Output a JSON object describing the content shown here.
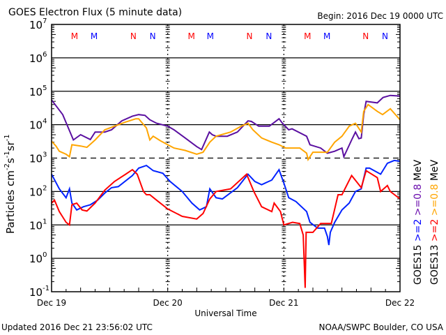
{
  "chart_data": {
    "type": "line",
    "title": "GOES Electron Flux (5 minute data)",
    "begin_label": "Begin: 2016 Dec 19 0000 UTC",
    "xlabel": "Universal Time",
    "ylabel": "Particles cm",
    "ylabel_parts": [
      "Particles cm",
      "-2",
      "s",
      "-1",
      "sr",
      "-1"
    ],
    "yscale": "log",
    "ylim": [
      0.1,
      10000000
    ],
    "xlim_hours": [
      0,
      72
    ],
    "y_ticks": [
      {
        "base": "10",
        "exp": "7",
        "value": 10000000
      },
      {
        "base": "10",
        "exp": "6",
        "value": 1000000
      },
      {
        "base": "10",
        "exp": "5",
        "value": 100000
      },
      {
        "base": "10",
        "exp": "4",
        "value": 10000
      },
      {
        "base": "10",
        "exp": "3",
        "value": 1000
      },
      {
        "base": "10",
        "exp": "2",
        "value": 100
      },
      {
        "base": "10",
        "exp": "1",
        "value": 10
      },
      {
        "base": "10",
        "exp": "0",
        "value": 1
      },
      {
        "base": "10",
        "exp": "-1",
        "value": 0.1
      }
    ],
    "x_ticks": [
      {
        "label": "Dec 19",
        "hour": 0
      },
      {
        "label": "Dec 20",
        "hour": 24
      },
      {
        "label": "Dec 21",
        "hour": 48
      },
      {
        "label": "Dec 22",
        "hour": 72
      }
    ],
    "threshold_dashed": 1000,
    "markers": [
      {
        "label": "M",
        "color": "#ff0000",
        "hour": 4.75
      },
      {
        "label": "M",
        "color": "#0000ff",
        "hour": 8.8
      },
      {
        "label": "N",
        "color": "#ff0000",
        "hour": 16.9
      },
      {
        "label": "N",
        "color": "#0000ff",
        "hour": 20.9
      },
      {
        "label": "M",
        "color": "#ff0000",
        "hour": 28.9
      },
      {
        "label": "M",
        "color": "#0000ff",
        "hour": 32.8
      },
      {
        "label": "N",
        "color": "#ff0000",
        "hour": 40.9
      },
      {
        "label": "N",
        "color": "#0000ff",
        "hour": 44.9
      },
      {
        "label": "M",
        "color": "#ff0000",
        "hour": 52.9
      },
      {
        "label": "M",
        "color": "#0000ff",
        "hour": 56.9
      },
      {
        "label": "N",
        "color": "#ff0000",
        "hour": 64.9
      },
      {
        "label": "N",
        "color": "#0000ff",
        "hour": 68.9
      }
    ],
    "legend": [
      {
        "satellite": "GOES15",
        "entries": [
          {
            "label": ">=2",
            "color": "#0000ff"
          },
          {
            "label": ">=0.8",
            "color": "#6a0dad"
          }
        ],
        "unit": "MeV"
      },
      {
        "satellite": "GOES13",
        "entries": [
          {
            "label": ">=2",
            "color": "#ff0000"
          },
          {
            "label": ">=0.8",
            "color": "#ffa500"
          }
        ],
        "unit": "MeV"
      }
    ],
    "legend_placement": "right",
    "series": [
      {
        "name": "GOES15 >=0.8 MeV",
        "color": "#5a0fa0",
        "points": [
          [
            0,
            55000
          ],
          [
            2.3,
            20000
          ],
          [
            4.5,
            3500
          ],
          [
            6,
            5000
          ],
          [
            8,
            3600
          ],
          [
            9,
            6000
          ],
          [
            11,
            6000
          ],
          [
            12.4,
            7000
          ],
          [
            14.5,
            13000
          ],
          [
            16.7,
            18000
          ],
          [
            18,
            20000
          ],
          [
            19.3,
            19000
          ],
          [
            20.3,
            14000
          ],
          [
            21.7,
            11000
          ],
          [
            24,
            9000
          ],
          [
            25.3,
            7000
          ],
          [
            27.6,
            4000
          ],
          [
            30,
            2200
          ],
          [
            31,
            1800
          ],
          [
            32.6,
            6000
          ],
          [
            33.2,
            5000
          ],
          [
            34,
            4500
          ],
          [
            36.3,
            4500
          ],
          [
            38.4,
            6000
          ],
          [
            40.6,
            13000
          ],
          [
            41.3,
            12500
          ],
          [
            42.8,
            9000
          ],
          [
            45,
            9000
          ],
          [
            47,
            15000
          ],
          [
            47.7,
            11000
          ],
          [
            49,
            7000
          ],
          [
            49.7,
            7500
          ],
          [
            52.7,
            4500
          ],
          [
            53.4,
            2500
          ],
          [
            55.6,
            2000
          ],
          [
            57,
            1400
          ],
          [
            58.5,
            1600
          ],
          [
            60,
            2000
          ],
          [
            60.4,
            1100
          ],
          [
            62,
            3500
          ],
          [
            62.8,
            6000
          ],
          [
            63.5,
            3800
          ],
          [
            64,
            4000
          ],
          [
            64.5,
            20000
          ],
          [
            65,
            50000
          ],
          [
            67.3,
            45000
          ],
          [
            68.5,
            65000
          ],
          [
            70,
            75000
          ],
          [
            72,
            72000
          ]
        ]
      },
      {
        "name": "GOES13 >=0.8 MeV",
        "color": "#ffa500",
        "points": [
          [
            0,
            3200
          ],
          [
            0.9,
            2300
          ],
          [
            1.6,
            1600
          ],
          [
            3,
            1300
          ],
          [
            3.7,
            1100
          ],
          [
            4.2,
            2500
          ],
          [
            6,
            2300
          ],
          [
            7.3,
            2100
          ],
          [
            9,
            3500
          ],
          [
            11,
            7000
          ],
          [
            13,
            9000
          ],
          [
            15.3,
            12000
          ],
          [
            17.4,
            15000
          ],
          [
            18,
            15000
          ],
          [
            19.6,
            8000
          ],
          [
            20.3,
            3500
          ],
          [
            21,
            4500
          ],
          [
            22.5,
            3300
          ],
          [
            24,
            2500
          ],
          [
            25.3,
            2000
          ],
          [
            27.6,
            1700
          ],
          [
            30,
            1300
          ],
          [
            31.3,
            1500
          ],
          [
            32.7,
            3000
          ],
          [
            34,
            4500
          ],
          [
            37,
            6000
          ],
          [
            39.2,
            9000
          ],
          [
            40.6,
            11000
          ],
          [
            41.6,
            7000
          ],
          [
            43.4,
            4000
          ],
          [
            45.5,
            3000
          ],
          [
            47,
            2500
          ],
          [
            48.4,
            2000
          ],
          [
            51.3,
            2000
          ],
          [
            52.7,
            1400
          ],
          [
            53,
            900
          ],
          [
            54,
            1500
          ],
          [
            57,
            1500
          ],
          [
            58.5,
            3000
          ],
          [
            60,
            4500
          ],
          [
            61.5,
            9000
          ],
          [
            62.8,
            11000
          ],
          [
            64,
            6000
          ],
          [
            64.5,
            25000
          ],
          [
            65.4,
            40000
          ],
          [
            67.3,
            25000
          ],
          [
            68.4,
            20000
          ],
          [
            70,
            30000
          ],
          [
            72,
            14000
          ]
        ]
      },
      {
        "name": "GOES15 >=2 MeV",
        "color": "#0022ff",
        "points": [
          [
            0,
            330
          ],
          [
            1.6,
            120
          ],
          [
            3,
            65
          ],
          [
            3.7,
            120
          ],
          [
            4.2,
            45
          ],
          [
            5.2,
            28
          ],
          [
            6.6,
            35
          ],
          [
            8,
            40
          ],
          [
            9.5,
            55
          ],
          [
            11,
            90
          ],
          [
            12.4,
            130
          ],
          [
            13.8,
            140
          ],
          [
            16.7,
            300
          ],
          [
            18,
            500
          ],
          [
            19.6,
            600
          ],
          [
            21,
            420
          ],
          [
            23,
            350
          ],
          [
            24.5,
            200
          ],
          [
            27,
            100
          ],
          [
            29,
            45
          ],
          [
            30.6,
            28
          ],
          [
            32,
            35
          ],
          [
            32.7,
            120
          ],
          [
            34,
            65
          ],
          [
            35.3,
            60
          ],
          [
            38.4,
            130
          ],
          [
            40.6,
            330
          ],
          [
            42,
            200
          ],
          [
            43.4,
            160
          ],
          [
            45.5,
            220
          ],
          [
            47,
            450
          ],
          [
            48,
            180
          ],
          [
            49,
            65
          ],
          [
            50.5,
            50
          ],
          [
            52.7,
            25
          ],
          [
            53.4,
            12
          ],
          [
            55,
            8
          ],
          [
            56.4,
            8
          ],
          [
            57,
            4.5
          ],
          [
            57.3,
            2.5
          ],
          [
            57.6,
            6
          ],
          [
            58.5,
            12
          ],
          [
            60,
            28
          ],
          [
            61.5,
            45
          ],
          [
            62.8,
            100
          ],
          [
            64,
            120
          ],
          [
            65,
            500
          ],
          [
            65.7,
            500
          ],
          [
            68,
            330
          ],
          [
            69.4,
            700
          ],
          [
            70.8,
            850
          ],
          [
            72,
            800
          ]
        ]
      },
      {
        "name": "GOES13 >=2 MeV",
        "color": "#ff0000",
        "points": [
          [
            0,
            45
          ],
          [
            0.6,
            55
          ],
          [
            1.6,
            25
          ],
          [
            3,
            12
          ],
          [
            3.7,
            10
          ],
          [
            4.2,
            40
          ],
          [
            5.2,
            45
          ],
          [
            6.3,
            28
          ],
          [
            7.3,
            26
          ],
          [
            9,
            45
          ],
          [
            11,
            110
          ],
          [
            13,
            200
          ],
          [
            15.3,
            330
          ],
          [
            16.7,
            450
          ],
          [
            17.7,
            330
          ],
          [
            19,
            100
          ],
          [
            19.6,
            80
          ],
          [
            20.3,
            80
          ],
          [
            21.7,
            55
          ],
          [
            24,
            30
          ],
          [
            27,
            18
          ],
          [
            30,
            15
          ],
          [
            31.3,
            22
          ],
          [
            32.7,
            60
          ],
          [
            34,
            100
          ],
          [
            37,
            120
          ],
          [
            40.3,
            330
          ],
          [
            41.8,
            100
          ],
          [
            43.4,
            35
          ],
          [
            45.5,
            25
          ],
          [
            46,
            45
          ],
          [
            47.3,
            25
          ],
          [
            48,
            10
          ],
          [
            49.8,
            12
          ],
          [
            51.3,
            11
          ],
          [
            52,
            5
          ],
          [
            52.4,
            0.13
          ],
          [
            52.6,
            6
          ],
          [
            54,
            6
          ],
          [
            55.6,
            11
          ],
          [
            57.8,
            11
          ],
          [
            59.2,
            80
          ],
          [
            60,
            80
          ],
          [
            62,
            300
          ],
          [
            64,
            130
          ],
          [
            65,
            420
          ],
          [
            67.3,
            260
          ],
          [
            68,
            100
          ],
          [
            69.4,
            150
          ],
          [
            70,
            100
          ],
          [
            72,
            60
          ]
        ]
      }
    ]
  },
  "footer": {
    "updated": "Updated 2016 Dec 21 23:56:02 UTC",
    "credit": "NOAA/SWPC Boulder, CO USA"
  }
}
